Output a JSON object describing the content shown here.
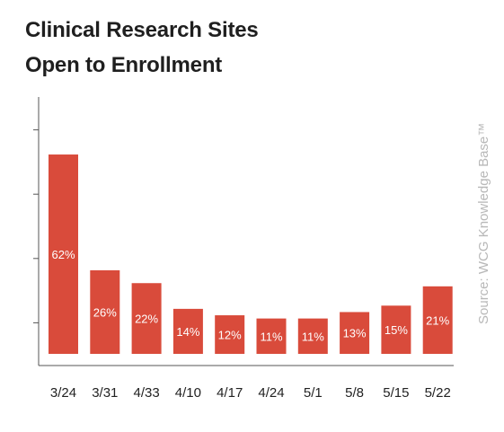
{
  "title": {
    "line1": "Clinical Research Sites",
    "line2": "Open to Enrollment"
  },
  "source": "Source: WCG Knowledge Base™",
  "colors": {
    "bar": "#d94b3b",
    "bar_label": "#ffffff",
    "source": "#b8b8b8"
  },
  "chart_data": {
    "type": "bar",
    "categories": [
      "3/24",
      "3/31",
      "4/33",
      "4/10",
      "4/17",
      "4/24",
      "5/1",
      "5/8",
      "5/15",
      "5/22"
    ],
    "values": [
      62,
      26,
      22,
      14,
      12,
      11,
      11,
      13,
      15,
      21
    ],
    "data_labels": [
      "62%",
      "26%",
      "22%",
      "14%",
      "12%",
      "11%",
      "11%",
      "13%",
      "15%",
      "21%"
    ],
    "title": "Clinical Research Sites Open to Enrollment",
    "xlabel": "",
    "ylabel": "",
    "ylim": [
      0,
      100
    ],
    "grid": false,
    "legend": "none"
  }
}
